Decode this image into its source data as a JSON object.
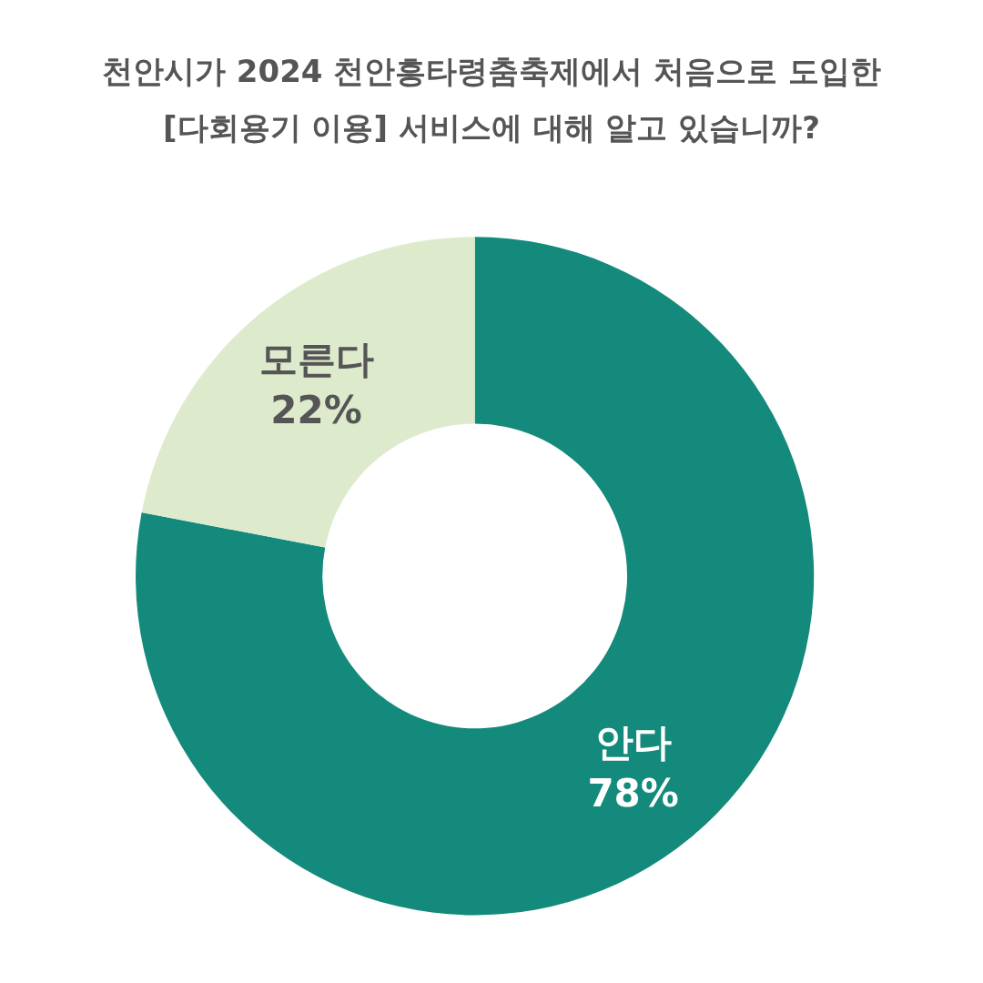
{
  "chart_data": {
    "type": "donut",
    "title": "천안시가 2024 천안흥타령춤축제에서 처음으로 도입한\n[다회용기 이용] 서비스에 대해 알고 있습니까?",
    "categories": [
      "안다",
      "모른다"
    ],
    "values": [
      78,
      22
    ],
    "value_labels": [
      "78%",
      "22%"
    ],
    "colors": [
      "#138a7b",
      "#ddebcc"
    ],
    "legend": false
  }
}
